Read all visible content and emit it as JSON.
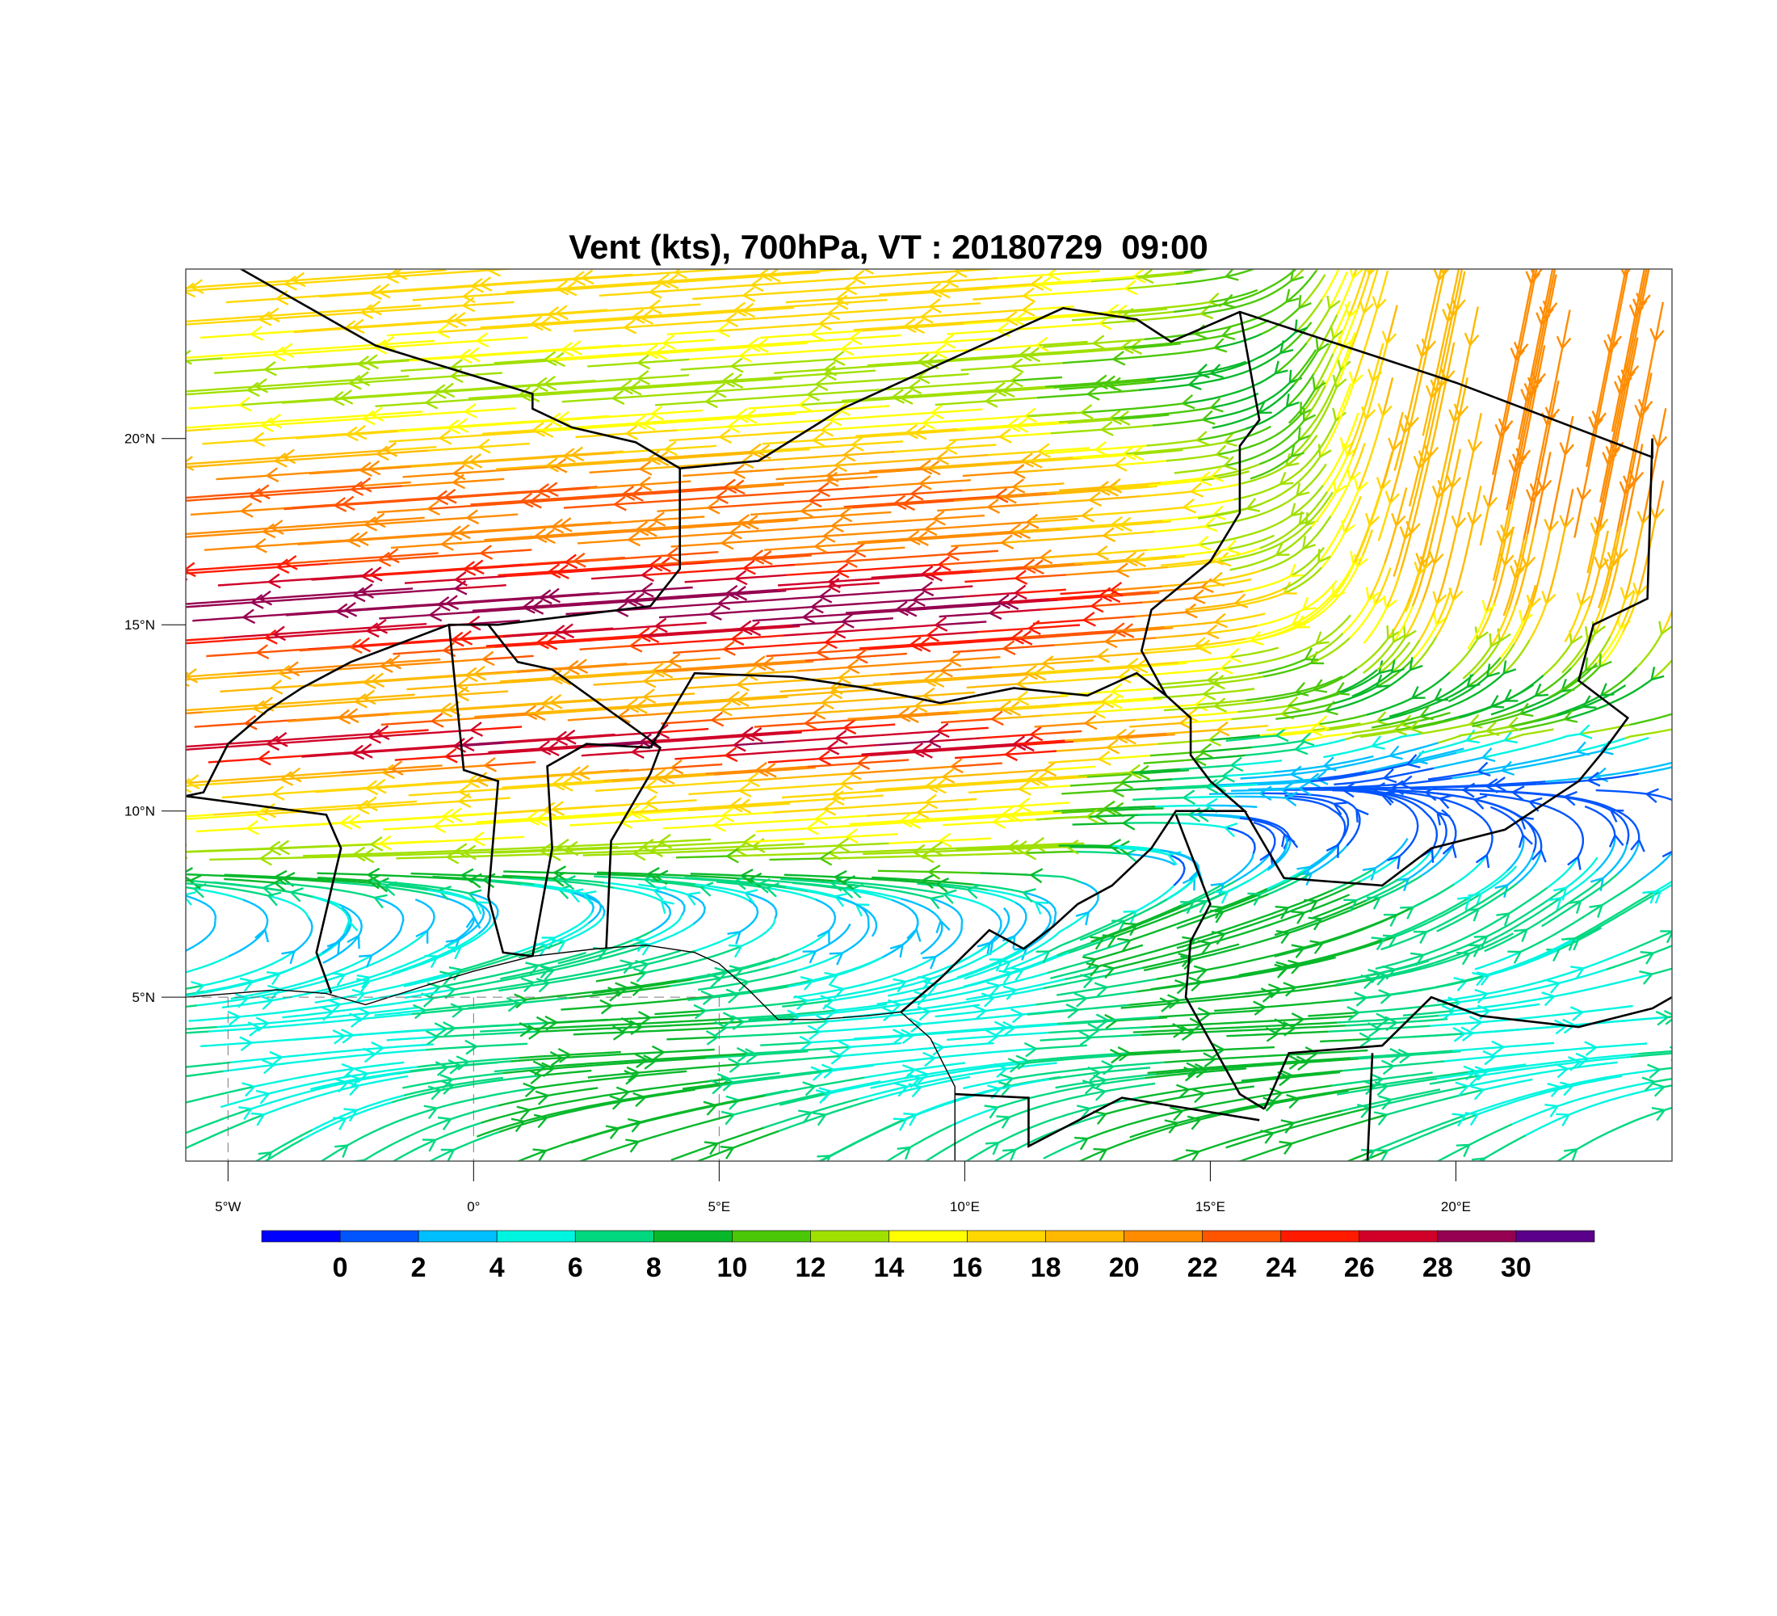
{
  "title": "Vent (kts), 700hPa, VT : 20180729  09:00",
  "map": {
    "lon_range": [
      -5.86,
      24.4
    ],
    "lat_range": [
      0.6,
      24.55
    ],
    "lon_ticks": [
      {
        "value": -5,
        "label": "5°W"
      },
      {
        "value": 0,
        "label": "0°"
      },
      {
        "value": 5,
        "label": "5°E"
      },
      {
        "value": 10,
        "label": "10°E"
      },
      {
        "value": 15,
        "label": "15°E"
      },
      {
        "value": 20,
        "label": "20°E"
      }
    ],
    "lat_ticks": [
      {
        "value": 20,
        "label": "20°N"
      },
      {
        "value": 15,
        "label": "15°N"
      },
      {
        "value": 10,
        "label": "10°N"
      },
      {
        "value": 5,
        "label": "5°N"
      }
    ]
  },
  "colorbar": {
    "labels": [
      "0",
      "2",
      "4",
      "6",
      "8",
      "10",
      "12",
      "14",
      "16",
      "18",
      "20",
      "22",
      "24",
      "26",
      "28",
      "30"
    ],
    "colors": [
      "#0000ff",
      "#0055ff",
      "#00bfff",
      "#00f5e0",
      "#00d880",
      "#08b82a",
      "#4ac808",
      "#a0e000",
      "#ffff00",
      "#ffd700",
      "#ffb900",
      "#ff8c00",
      "#ff5500",
      "#ff1a00",
      "#d00028",
      "#960050",
      "#5a008a"
    ]
  }
}
